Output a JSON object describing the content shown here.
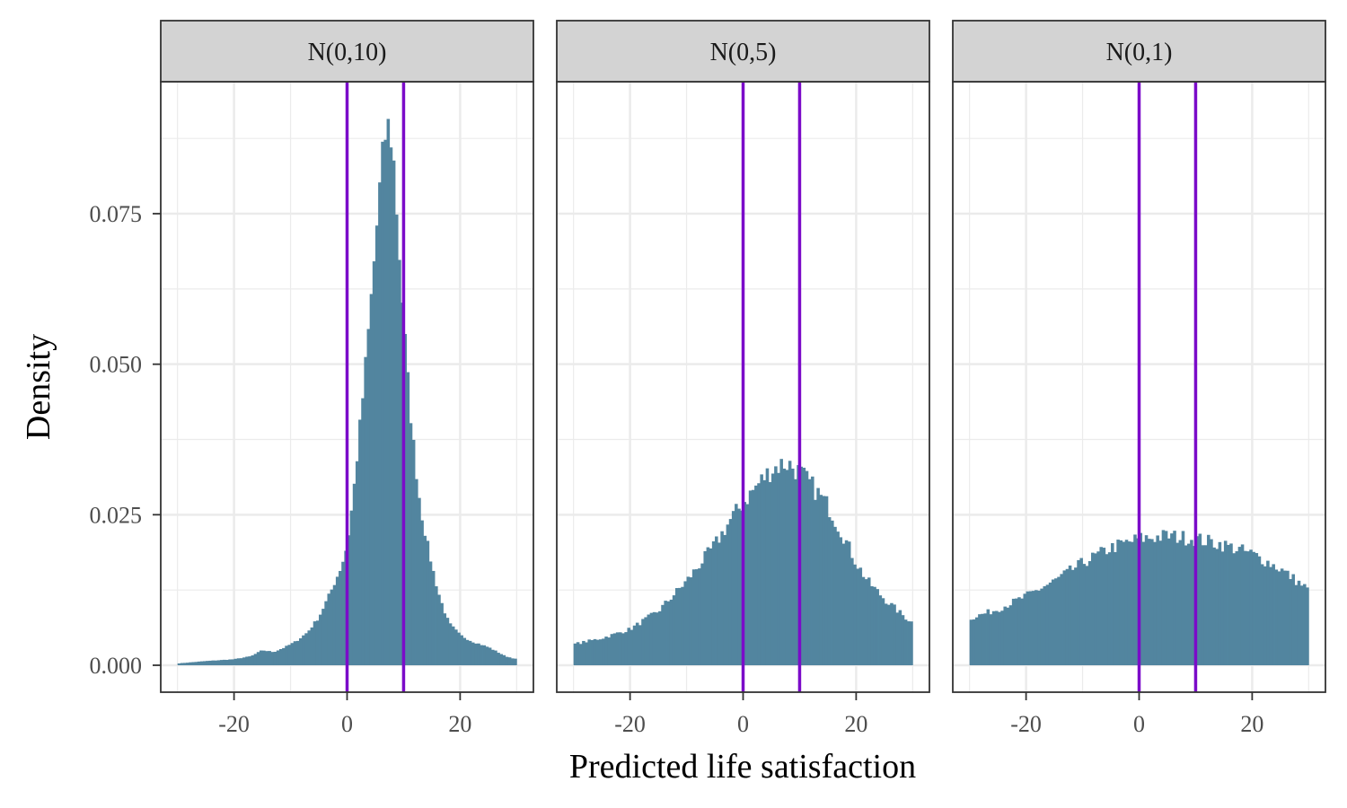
{
  "chart_data": {
    "type": "bar",
    "chart_kind": "faceted histogram",
    "xlabel": "Predicted life satisfaction",
    "ylabel": "Density",
    "xlim": [
      -30,
      30
    ],
    "ylim": [
      0,
      0.092
    ],
    "x_ticks": [
      -20,
      0,
      20
    ],
    "x_tick_labels": [
      "-20",
      "0",
      "20"
    ],
    "y_ticks": [
      0,
      0.025,
      0.05,
      0.075
    ],
    "y_tick_labels": [
      "0.000",
      "0.025",
      "0.050",
      "0.075"
    ],
    "grid": true,
    "legend": "none",
    "reference_lines_x": [
      0,
      10
    ],
    "colors": {
      "bars": "#52859f",
      "reference_line": "#7b0bc9",
      "strip_fill": "#d3d3d3",
      "grid": "#ebebeb",
      "frame": "#333333"
    },
    "bin_width": 0.5,
    "facets": [
      {
        "label": "N(0,10)",
        "x": [
          -30,
          -25,
          -20,
          -17,
          -15,
          -13,
          -11,
          -9,
          -7,
          -5,
          -3,
          -1,
          0,
          1,
          2,
          3,
          4,
          5,
          6,
          7,
          8,
          9,
          10,
          11,
          12,
          13,
          14,
          15,
          16,
          17,
          18,
          20,
          22,
          25,
          28,
          30
        ],
        "values": [
          0.0003,
          0.0007,
          0.001,
          0.0015,
          0.0025,
          0.0022,
          0.003,
          0.004,
          0.0055,
          0.008,
          0.012,
          0.0165,
          0.02,
          0.0275,
          0.037,
          0.047,
          0.058,
          0.07,
          0.082,
          0.09,
          0.087,
          0.072,
          0.057,
          0.044,
          0.034,
          0.026,
          0.021,
          0.0165,
          0.0125,
          0.0095,
          0.007,
          0.005,
          0.004,
          0.003,
          0.0015,
          0.001
        ]
      },
      {
        "label": "N(0,5)",
        "x": [
          -30,
          -25,
          -20,
          -15,
          -10,
          -5,
          -2,
          0,
          3,
          5,
          7,
          8,
          10,
          12,
          15,
          18,
          20,
          22,
          25,
          28,
          30
        ],
        "values": [
          0.0035,
          0.0045,
          0.006,
          0.009,
          0.014,
          0.02,
          0.0245,
          0.027,
          0.0305,
          0.0325,
          0.0335,
          0.0335,
          0.032,
          0.03,
          0.0265,
          0.021,
          0.017,
          0.014,
          0.011,
          0.0085,
          0.007
        ]
      },
      {
        "label": "N(0,1)",
        "x": [
          -30,
          -25,
          -20,
          -15,
          -10,
          -5,
          0,
          5,
          10,
          15,
          20,
          25,
          30
        ],
        "values": [
          0.0078,
          0.0093,
          0.0115,
          0.014,
          0.017,
          0.0195,
          0.021,
          0.0215,
          0.021,
          0.02,
          0.0185,
          0.016,
          0.0125
        ]
      }
    ]
  }
}
